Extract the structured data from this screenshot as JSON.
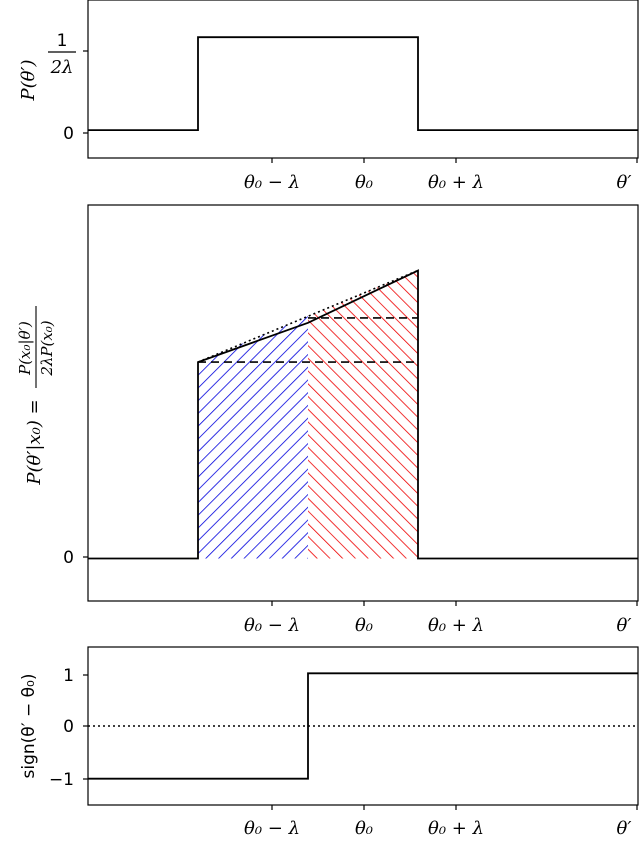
{
  "chart_data": [
    {
      "type": "line",
      "panel": "top",
      "ylabel": "P(θ′)",
      "x_ticks": [
        "θ₀ − λ",
        "θ₀",
        "θ₀ + λ",
        "θ′"
      ],
      "y_ticks": [
        "0",
        "1/2λ"
      ],
      "series": [
        {
          "x": [
            -2,
            -1,
            -1,
            1,
            1,
            3
          ],
          "y": [
            0,
            0,
            1,
            1,
            0,
            0
          ]
        }
      ],
      "xlim": [
        -2,
        3
      ],
      "ylim": [
        -0.3,
        1.4
      ],
      "grid": false
    },
    {
      "type": "area",
      "panel": "middle",
      "ylabel": "P(θ′|x₀) = P(x₀|θ′) / 2λP(x₀)",
      "x_ticks": [
        "θ₀ − λ",
        "θ₀",
        "θ₀ + λ",
        "θ′"
      ],
      "y_ticks": [
        "0"
      ],
      "series": [
        {
          "style": "solid",
          "x": [
            -2,
            -1,
            -1,
            0,
            1,
            1,
            3
          ],
          "y": [
            0,
            0,
            0.6,
            0.72,
            0.88,
            0,
            0
          ]
        },
        {
          "style": "dotted",
          "x": [
            -1,
            1
          ],
          "y": [
            0.6,
            0.88
          ]
        },
        {
          "style": "dashed",
          "x": [
            -1,
            1
          ],
          "y": [
            0.6,
            0.6
          ]
        },
        {
          "style": "dashed",
          "x": [
            0,
            1
          ],
          "y": [
            0.735,
            0.735
          ]
        }
      ],
      "fills": [
        {
          "color": "#0000dd",
          "hatch": "diagonal",
          "x": [
            -1,
            0
          ]
        },
        {
          "color": "#ee0000",
          "hatch": "diagonal",
          "x": [
            0,
            1
          ]
        }
      ],
      "xlim": [
        -2,
        3
      ],
      "ylim": [
        -0.13,
        1.08
      ],
      "grid": false
    },
    {
      "type": "line",
      "panel": "bottom",
      "ylabel": "sign(θ′ − θ₀)",
      "x_ticks": [
        "θ₀ − λ",
        "θ₀",
        "θ₀ + λ",
        "θ′"
      ],
      "y_ticks": [
        "−1",
        "0",
        "1"
      ],
      "series": [
        {
          "style": "solid",
          "x": [
            -2,
            0,
            0,
            3
          ],
          "y": [
            -1,
            -1,
            1,
            1
          ]
        },
        {
          "style": "dotted",
          "x": [
            -2,
            3
          ],
          "y": [
            0,
            0
          ]
        }
      ],
      "xlim": [
        -2,
        3
      ],
      "ylim": [
        -1.5,
        1.5
      ],
      "grid": false
    }
  ],
  "labels": {
    "top_y_zero": "0",
    "top_y_one_num": "1",
    "top_y_one_den": "2λ",
    "mid_y_zero": "0",
    "bot_y_minus1": "−1",
    "bot_y_zero": "0",
    "bot_y_one": "1",
    "top_ylabel": "P(θ′)",
    "mid_ylabel_left": "P(θ′|x₀) =",
    "mid_ylabel_num": "P(x₀|θ′)",
    "mid_ylabel_den": "2λP(x₀)",
    "bot_ylabel": "sign(θ′ − θ₀)",
    "x_minus": "θ₀ − λ",
    "x_center": "θ₀",
    "x_plus": "θ₀ + λ",
    "x_prime": "θ′"
  }
}
